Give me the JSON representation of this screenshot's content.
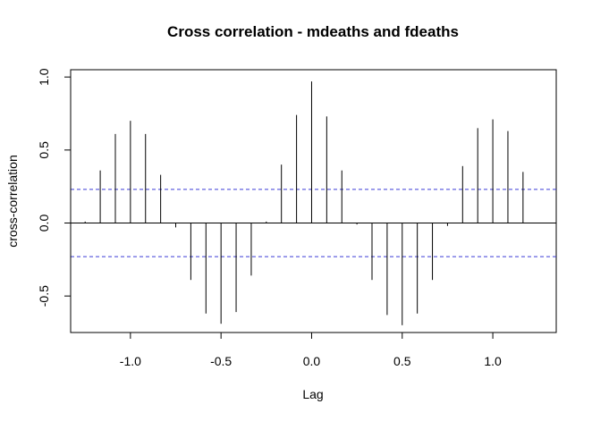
{
  "chart_data": {
    "type": "bar",
    "title": "Cross correlation - mdeaths and fdeaths",
    "xlabel": "Lag",
    "ylabel": "cross-correlation",
    "xlim": [
      -1.33,
      1.35
    ],
    "ylim": [
      -0.75,
      1.05
    ],
    "xticks": [
      -1.0,
      -0.5,
      0.0,
      0.5,
      1.0
    ],
    "xtick_labels": [
      "-1.0",
      "-0.5",
      "0.0",
      "0.5",
      "1.0"
    ],
    "yticks": [
      -0.5,
      0.0,
      0.5,
      1.0
    ],
    "ytick_labels": [
      "-0.5",
      "0.0",
      "0.5",
      "1.0"
    ],
    "confidence_bounds": [
      0.23,
      -0.23
    ],
    "zero_line": true,
    "grid": false,
    "colors": {
      "bars": "#000000",
      "bounds": "#3b3bd6",
      "zero_line": "#000000"
    },
    "series": [
      {
        "x": [
          -1.25,
          -1.1667,
          -1.0833,
          -1.0,
          -0.9167,
          -0.8333,
          -0.75,
          -0.6667,
          -0.5833,
          -0.5,
          -0.4167,
          -0.3333,
          -0.25,
          -0.1667,
          -0.0833,
          0.0,
          0.0833,
          0.1667,
          0.25,
          0.3333,
          0.4167,
          0.5,
          0.5833,
          0.6667,
          0.75,
          0.8333,
          0.9167,
          1.0,
          1.0833,
          1.1667
        ],
        "values": [
          0.01,
          0.36,
          0.61,
          0.7,
          0.61,
          0.33,
          -0.03,
          -0.39,
          -0.62,
          -0.69,
          -0.61,
          -0.36,
          0.01,
          0.4,
          0.74,
          0.97,
          0.73,
          0.36,
          -0.01,
          -0.39,
          -0.63,
          -0.7,
          -0.62,
          -0.39,
          -0.02,
          0.39,
          0.65,
          0.71,
          0.63,
          0.35
        ]
      }
    ]
  }
}
